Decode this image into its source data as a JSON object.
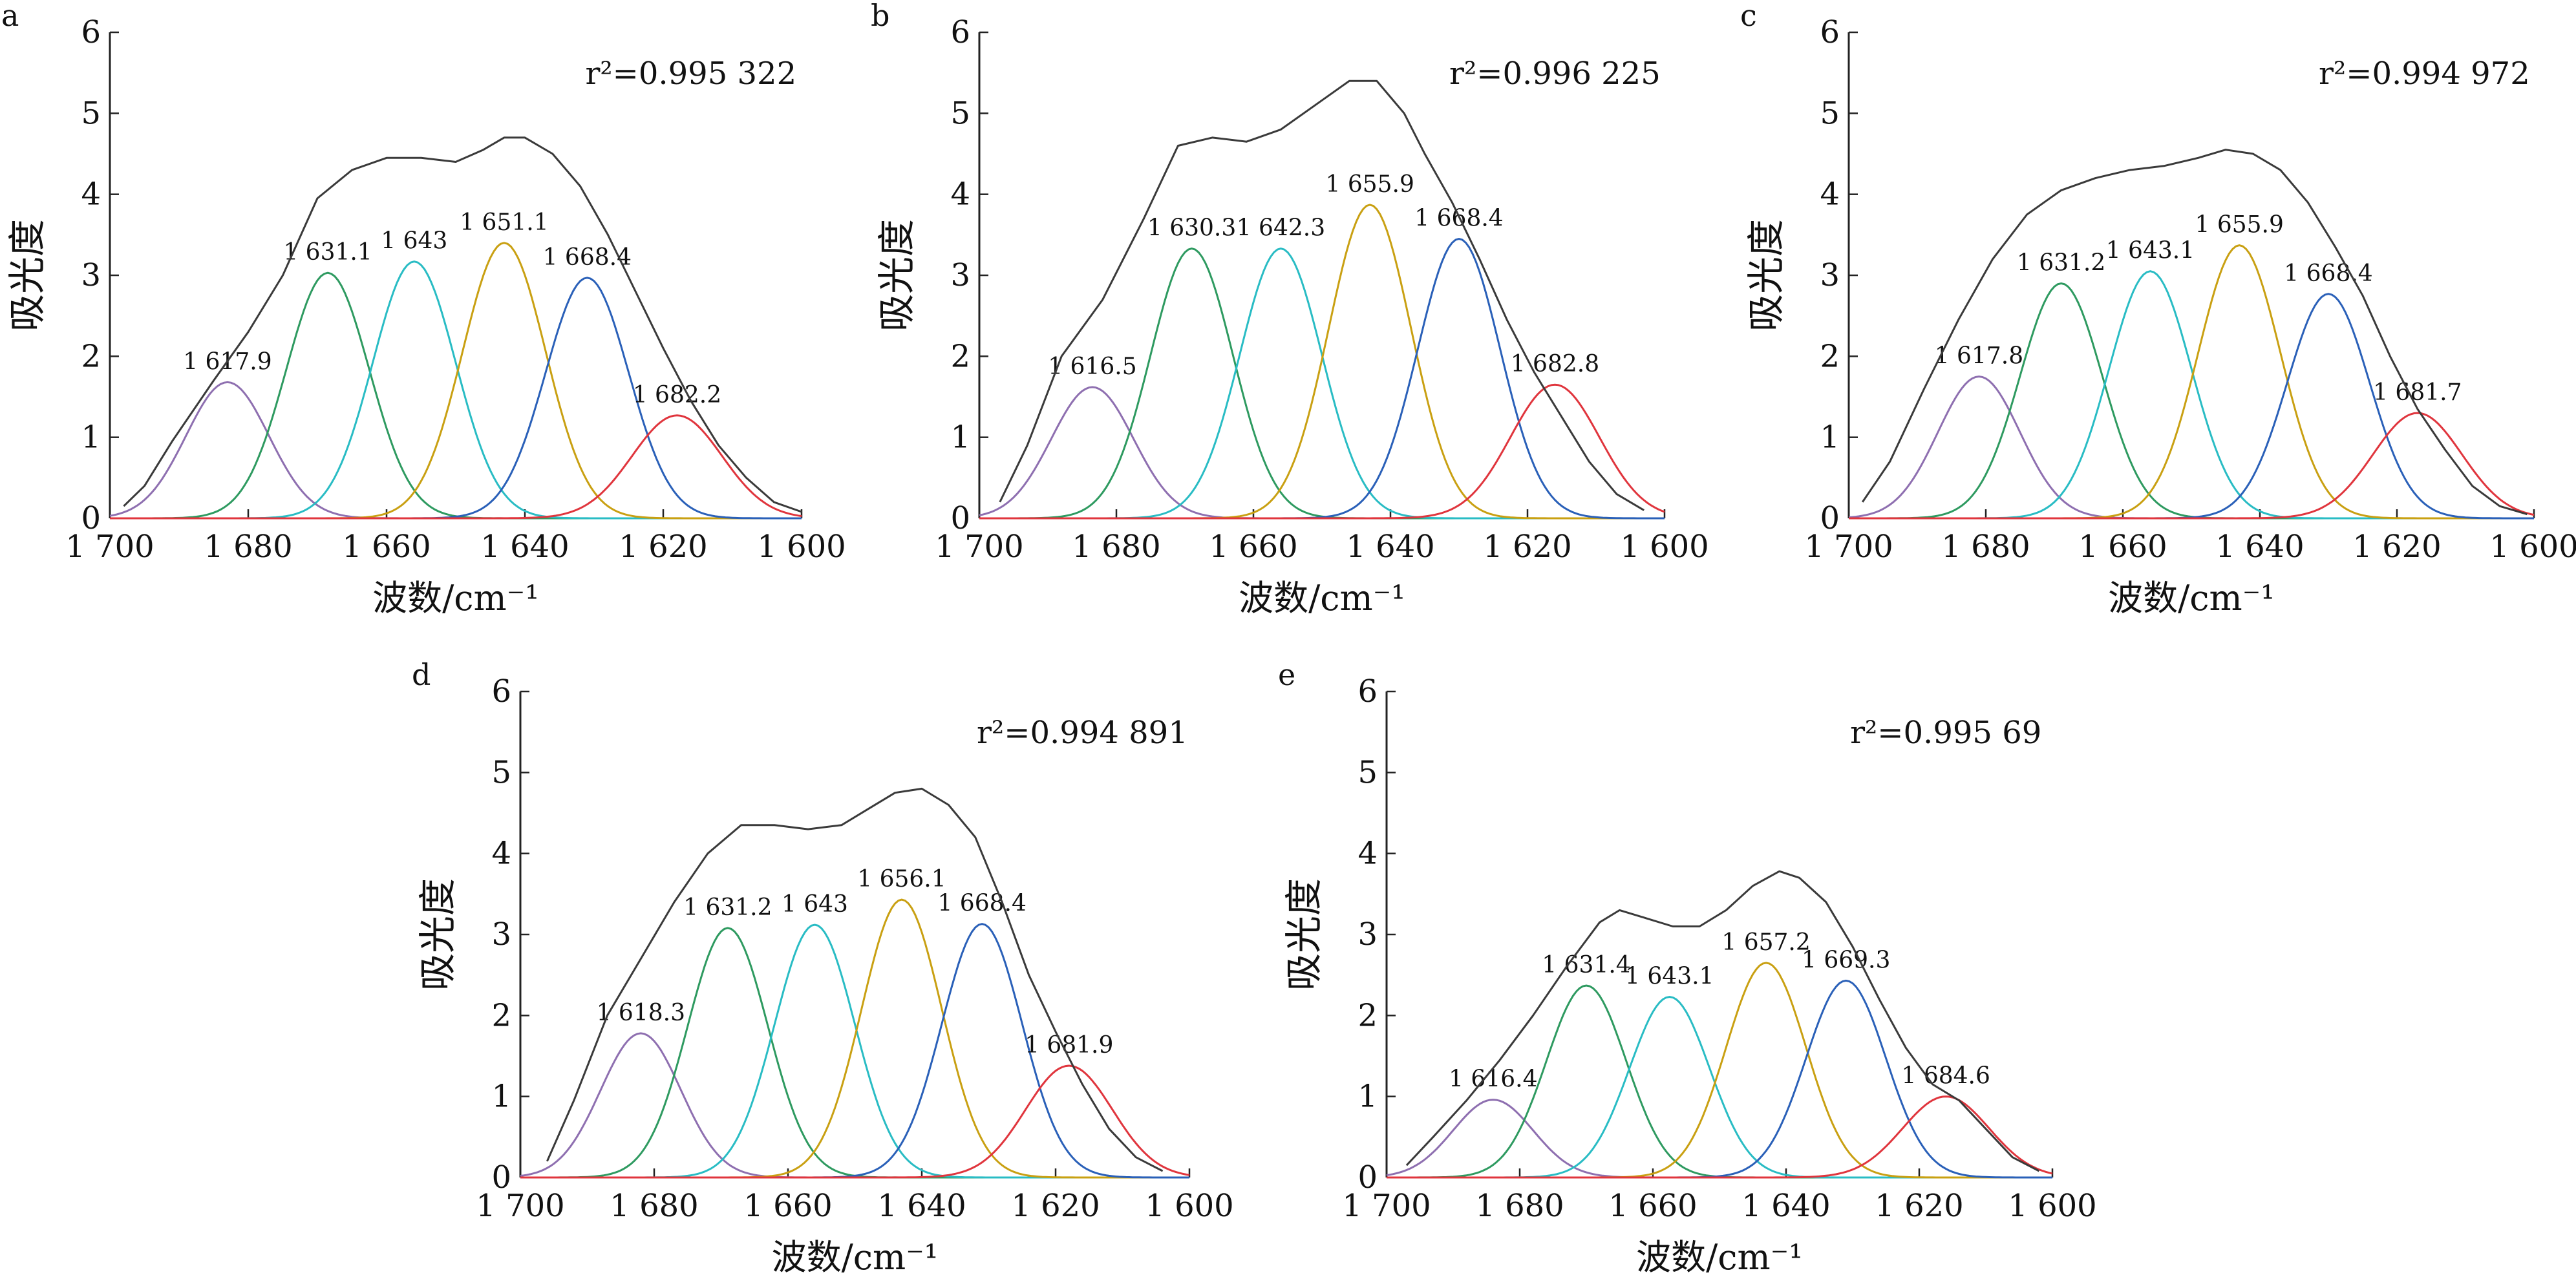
{
  "colors": {
    "envelope": "#3a3a3a",
    "peaks": [
      "#8e6fb0",
      "#2e9a60",
      "#29bcc4",
      "#c9a012",
      "#2a60b8",
      "#e0353d"
    ],
    "axis": "#222222"
  },
  "chart_data": [
    {
      "type": "line",
      "panel": "a",
      "r2_label": "r²=0.995 322",
      "xlabel": "波数/cm⁻¹",
      "ylabel": "吸光度",
      "xlim": [
        1700,
        1600
      ],
      "ylim": [
        0,
        6
      ],
      "xticks": [
        "1 700",
        "1 680",
        "1 660",
        "1 640",
        "1 620",
        "1 600"
      ],
      "yticks": [
        "0",
        "1",
        "2",
        "3",
        "4",
        "5",
        "6"
      ],
      "peaks": [
        {
          "label": "1 617.9",
          "x": 1683,
          "height": 1.68,
          "sigma": 6.0
        },
        {
          "label": "1 631.1",
          "x": 1668.5,
          "height": 3.03,
          "sigma": 6.0
        },
        {
          "label": "1 643",
          "x": 1656,
          "height": 3.17,
          "sigma": 6.0
        },
        {
          "label": "1 651.1",
          "x": 1643,
          "height": 3.4,
          "sigma": 6.0
        },
        {
          "label": "1 668.4",
          "x": 1631,
          "height": 2.97,
          "sigma": 6.0
        },
        {
          "label": "1 682.2",
          "x": 1618,
          "height": 1.27,
          "sigma": 6.5
        }
      ],
      "envelope": {
        "x": [
          1698,
          1695,
          1691,
          1685,
          1680,
          1675,
          1670,
          1665,
          1660,
          1655,
          1650,
          1646,
          1643,
          1640,
          1636,
          1632,
          1628,
          1624,
          1620,
          1616,
          1612,
          1608,
          1604,
          1600
        ],
        "y": [
          0.15,
          0.4,
          0.95,
          1.7,
          2.3,
          3.0,
          3.95,
          4.3,
          4.45,
          4.45,
          4.4,
          4.55,
          4.7,
          4.7,
          4.5,
          4.1,
          3.5,
          2.8,
          2.1,
          1.45,
          0.9,
          0.5,
          0.2,
          0.08
        ]
      }
    },
    {
      "type": "line",
      "panel": "b",
      "r2_label": "r²=0.996 225",
      "xlabel": "波数/cm⁻¹",
      "ylabel": "吸光度",
      "xlim": [
        1700,
        1600
      ],
      "ylim": [
        0,
        6
      ],
      "xticks": [
        "1 700",
        "1 680",
        "1 660",
        "1 640",
        "1 620",
        "1 600"
      ],
      "yticks": [
        "0",
        "1",
        "2",
        "3",
        "4",
        "5",
        "6"
      ],
      "peaks": [
        {
          "label": "1 616.5",
          "x": 1683.5,
          "height": 1.62,
          "sigma": 6.0
        },
        {
          "label": "1 630.3",
          "x": 1669,
          "height": 3.33,
          "sigma": 6.0
        },
        {
          "label": "1 642.3",
          "x": 1656,
          "height": 3.33,
          "sigma": 6.0
        },
        {
          "label": "1 655.9",
          "x": 1643,
          "height": 3.87,
          "sigma": 6.0
        },
        {
          "label": "1 668.4",
          "x": 1630,
          "height": 3.45,
          "sigma": 6.0
        },
        {
          "label": "1 682.8",
          "x": 1616,
          "height": 1.65,
          "sigma": 6.5
        }
      ],
      "envelope": {
        "x": [
          1697,
          1693,
          1688,
          1682,
          1676,
          1671,
          1666,
          1661,
          1656,
          1651,
          1646,
          1642,
          1638,
          1635,
          1631,
          1627,
          1623,
          1619,
          1615,
          1611,
          1607,
          1603
        ],
        "y": [
          0.2,
          0.9,
          2.0,
          2.7,
          3.7,
          4.6,
          4.7,
          4.65,
          4.8,
          5.1,
          5.4,
          5.4,
          5.0,
          4.5,
          3.9,
          3.2,
          2.45,
          1.8,
          1.25,
          0.7,
          0.3,
          0.1
        ]
      }
    },
    {
      "type": "line",
      "panel": "c",
      "r2_label": "r²=0.994 972",
      "xlabel": "波数/cm⁻¹",
      "ylabel": "吸光度",
      "xlim": [
        1700,
        1600
      ],
      "ylim": [
        0,
        6
      ],
      "xticks": [
        "1 700",
        "1 680",
        "1 660",
        "1 640",
        "1 620",
        "1 600"
      ],
      "yticks": [
        "0",
        "1",
        "2",
        "3",
        "4",
        "5",
        "6"
      ],
      "peaks": [
        {
          "label": "1 617.8",
          "x": 1681,
          "height": 1.75,
          "sigma": 6.0
        },
        {
          "label": "1 631.2",
          "x": 1669,
          "height": 2.9,
          "sigma": 6.0
        },
        {
          "label": "1 643.1",
          "x": 1656,
          "height": 3.05,
          "sigma": 6.0
        },
        {
          "label": "1 655.9",
          "x": 1643,
          "height": 3.37,
          "sigma": 6.0
        },
        {
          "label": "1 668.4",
          "x": 1630,
          "height": 2.77,
          "sigma": 6.0
        },
        {
          "label": "1 681.7",
          "x": 1617,
          "height": 1.3,
          "sigma": 6.5
        }
      ],
      "envelope": {
        "x": [
          1698,
          1694,
          1689,
          1684,
          1679,
          1674,
          1669,
          1664,
          1659,
          1654,
          1649,
          1645,
          1641,
          1637,
          1633,
          1629,
          1625,
          1621,
          1617,
          1613,
          1609,
          1605,
          1601
        ],
        "y": [
          0.2,
          0.7,
          1.6,
          2.45,
          3.2,
          3.75,
          4.05,
          4.2,
          4.3,
          4.35,
          4.45,
          4.55,
          4.5,
          4.3,
          3.9,
          3.35,
          2.75,
          2.0,
          1.35,
          0.85,
          0.4,
          0.15,
          0.05
        ]
      }
    },
    {
      "type": "line",
      "panel": "d",
      "r2_label": "r²=0.994 891",
      "xlabel": "波数/cm⁻¹",
      "ylabel": "吸光度",
      "xlim": [
        1700,
        1600
      ],
      "ylim": [
        0,
        6
      ],
      "xticks": [
        "1 700",
        "1 680",
        "1 660",
        "1 640",
        "1 620",
        "1 600"
      ],
      "yticks": [
        "0",
        "1",
        "2",
        "3",
        "4",
        "5",
        "6"
      ],
      "peaks": [
        {
          "label": "1 618.3",
          "x": 1682,
          "height": 1.78,
          "sigma": 6.0
        },
        {
          "label": "1 631.2",
          "x": 1669,
          "height": 3.08,
          "sigma": 6.0
        },
        {
          "label": "1 643",
          "x": 1656,
          "height": 3.12,
          "sigma": 6.0
        },
        {
          "label": "1 656.1",
          "x": 1643,
          "height": 3.43,
          "sigma": 6.0
        },
        {
          "label": "1 668.4",
          "x": 1631,
          "height": 3.13,
          "sigma": 6.0
        },
        {
          "label": "1 681.9",
          "x": 1618,
          "height": 1.38,
          "sigma": 6.5
        }
      ],
      "envelope": {
        "x": [
          1696,
          1692,
          1687,
          1682,
          1677,
          1672,
          1667,
          1662,
          1657,
          1652,
          1648,
          1644,
          1640,
          1636,
          1632,
          1628,
          1624,
          1620,
          1616,
          1612,
          1608,
          1604
        ],
        "y": [
          0.2,
          0.95,
          2.0,
          2.7,
          3.4,
          4.0,
          4.35,
          4.35,
          4.3,
          4.35,
          4.55,
          4.75,
          4.8,
          4.6,
          4.2,
          3.4,
          2.5,
          1.8,
          1.15,
          0.6,
          0.25,
          0.08
        ]
      }
    },
    {
      "type": "line",
      "panel": "e",
      "r2_label": "r²=0.995 69",
      "xlabel": "波数/cm⁻¹",
      "ylabel": "吸光度",
      "xlim": [
        1700,
        1600
      ],
      "ylim": [
        0,
        6
      ],
      "xticks": [
        "1 700",
        "1 680",
        "1 660",
        "1 640",
        "1 620",
        "1 600"
      ],
      "yticks": [
        "0",
        "1",
        "2",
        "3",
        "4",
        "5",
        "6"
      ],
      "peaks": [
        {
          "label": "1 616.4",
          "x": 1684,
          "height": 0.96,
          "sigma": 6.0
        },
        {
          "label": "1 631.4",
          "x": 1670,
          "height": 2.37,
          "sigma": 6.0
        },
        {
          "label": "1 643.1",
          "x": 1657.5,
          "height": 2.23,
          "sigma": 6.0
        },
        {
          "label": "1 657.2",
          "x": 1643,
          "height": 2.65,
          "sigma": 6.0
        },
        {
          "label": "1 669.3",
          "x": 1631,
          "height": 2.43,
          "sigma": 6.0
        },
        {
          "label": "1 684.6",
          "x": 1616,
          "height": 1.0,
          "sigma": 6.5
        }
      ],
      "envelope": {
        "x": [
          1697,
          1693,
          1688,
          1683,
          1678,
          1673,
          1668,
          1665,
          1661,
          1657,
          1653,
          1649,
          1645,
          1641,
          1638,
          1634,
          1630,
          1626,
          1622,
          1618,
          1614,
          1610,
          1606,
          1602
        ],
        "y": [
          0.15,
          0.5,
          0.95,
          1.45,
          2.0,
          2.6,
          3.15,
          3.3,
          3.2,
          3.1,
          3.1,
          3.3,
          3.6,
          3.78,
          3.7,
          3.4,
          2.85,
          2.2,
          1.6,
          1.15,
          0.95,
          0.6,
          0.25,
          0.08
        ]
      }
    }
  ]
}
